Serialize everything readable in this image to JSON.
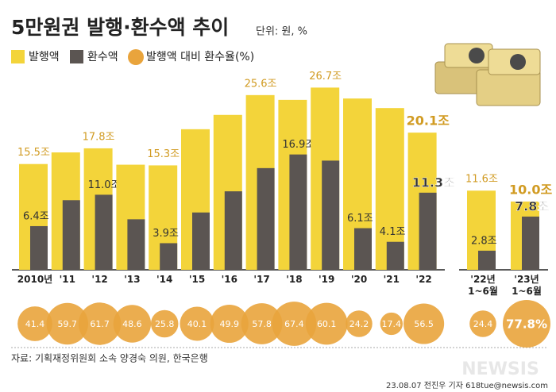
{
  "chart_data": {
    "type": "bar",
    "title": "5만원권 발행·환수액 추이",
    "unit": "단위: 원, %",
    "categories": [
      "2010년",
      "'11",
      "'12",
      "'13",
      "'14",
      "'15",
      "'16",
      "'17",
      "'18",
      "'19",
      "'20",
      "'21",
      "'22",
      "'22년\n1~6월",
      "'23년\n1~6월"
    ],
    "ylim": [
      0,
      30
    ],
    "series": [
      {
        "name": "발행액",
        "color": "#f3d43a",
        "values": [
          15.5,
          17.2,
          17.8,
          15.4,
          15.3,
          20.6,
          22.7,
          25.6,
          24.9,
          26.7,
          25.1,
          23.7,
          20.1,
          11.6,
          10.0
        ],
        "value_labels": [
          "15.5조",
          null,
          "17.8조",
          null,
          "15.3조",
          null,
          null,
          "25.6조",
          null,
          "26.7조",
          null,
          null,
          "20.1조",
          "11.6조",
          "10.0조"
        ]
      },
      {
        "name": "환수액",
        "color": "#5b5552",
        "values": [
          6.4,
          10.2,
          11.0,
          7.4,
          3.9,
          8.4,
          11.5,
          14.9,
          16.9,
          16.0,
          6.1,
          4.1,
          11.3,
          2.8,
          7.8
        ],
        "value_labels": [
          "6.4조",
          null,
          "11.0조",
          null,
          "3.9조",
          null,
          null,
          null,
          "16.9조",
          null,
          "6.1조",
          "4.1조",
          "11.3조",
          "2.8조",
          "7.8조"
        ]
      },
      {
        "name": "발행액 대비 환수율(%)",
        "color": "#e9a43c",
        "values": [
          41.4,
          59.7,
          61.7,
          48.6,
          25.8,
          40.1,
          49.9,
          57.8,
          67.4,
          60.1,
          24.2,
          17.4,
          56.5,
          24.4,
          77.8
        ],
        "value_labels": [
          "41.4",
          "59.7",
          "61.7",
          "48.6",
          "25.8",
          "40.1",
          "49.9",
          "57.8",
          "67.4",
          "60.1",
          "24.2",
          "17.4",
          "56.5",
          "24.4",
          "77.8%"
        ]
      }
    ],
    "source": "자료: 기획재정위원회 소속 양경숙 의원, 한국은행",
    "credit": "23.08.07 전진우 기자 618tue@newsis.com",
    "watermark": "NEWSIS"
  }
}
